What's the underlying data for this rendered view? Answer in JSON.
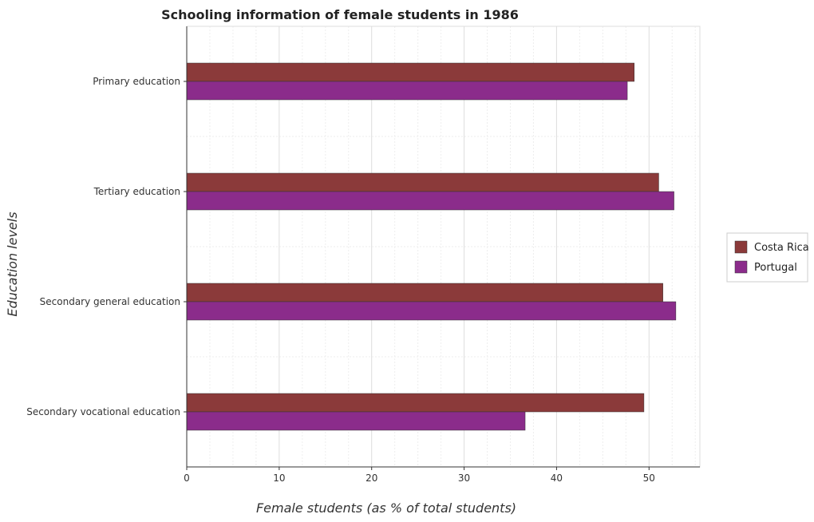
{
  "chart_data": {
    "type": "bar",
    "orientation": "horizontal",
    "title": "Schooling information of female students in 1986",
    "xlabel": "Female students (as % of total students)",
    "ylabel": "Education levels",
    "categories": [
      "Primary education",
      "Tertiary education",
      "Secondary general education",
      "Secondary vocational education"
    ],
    "series": [
      {
        "name": "Costa Rica",
        "color": "#8b3a3a",
        "values": [
          48.4,
          51.05,
          51.5,
          49.45
        ]
      },
      {
        "name": "Portugal",
        "color": "#8b2c8b",
        "values": [
          47.65,
          52.7,
          52.9,
          36.6
        ]
      }
    ],
    "xlim": [
      0,
      55.5
    ],
    "xticks": [
      0,
      10,
      20,
      30,
      40,
      50
    ],
    "xtick_labels": [
      "0",
      "10",
      "20",
      "30",
      "40",
      "50"
    ],
    "grid": true,
    "legend_position": "right"
  }
}
